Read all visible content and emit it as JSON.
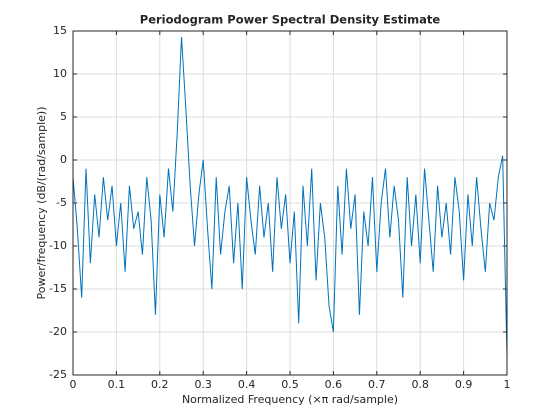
{
  "chart_data": {
    "type": "line",
    "title": "Periodogram Power Spectral Density Estimate",
    "xlabel": "Normalized Frequency  (×π rad/sample)",
    "ylabel": "Power/frequency (dB/(rad/sample))",
    "x": [
      0,
      0.01,
      0.02,
      0.03,
      0.04,
      0.05,
      0.06,
      0.07,
      0.08,
      0.09,
      0.1,
      0.11,
      0.12,
      0.13,
      0.14,
      0.15,
      0.16,
      0.17,
      0.18,
      0.19,
      0.2,
      0.21,
      0.22,
      0.23,
      0.24,
      0.25,
      0.26,
      0.27,
      0.28,
      0.29,
      0.3,
      0.31,
      0.32,
      0.33,
      0.34,
      0.35,
      0.36,
      0.37,
      0.38,
      0.39,
      0.4,
      0.41,
      0.42,
      0.43,
      0.44,
      0.45,
      0.46,
      0.47,
      0.48,
      0.49,
      0.5,
      0.51,
      0.52,
      0.53,
      0.54,
      0.55,
      0.56,
      0.57,
      0.58,
      0.59,
      0.6,
      0.61,
      0.62,
      0.63,
      0.64,
      0.65,
      0.66,
      0.67,
      0.68,
      0.69,
      0.7,
      0.71,
      0.72,
      0.73,
      0.74,
      0.75,
      0.76,
      0.77,
      0.78,
      0.79,
      0.8,
      0.81,
      0.82,
      0.83,
      0.84,
      0.85,
      0.86,
      0.87,
      0.88,
      0.89,
      0.9,
      0.91,
      0.92,
      0.93,
      0.94,
      0.95,
      0.96,
      0.97,
      0.98,
      0.99,
      1
    ],
    "series": [
      {
        "color": "#0072bd",
        "values": [
          -2,
          -8,
          -16,
          -1,
          -12,
          -4,
          -9,
          -2,
          -7,
          -3,
          -10,
          -5,
          -13,
          -3,
          -8,
          -6,
          -11,
          -2,
          -7,
          -18,
          -4,
          -9,
          -1,
          -6,
          3,
          14.3,
          6,
          -3,
          -10,
          -4,
          0,
          -8,
          -15,
          -2,
          -11,
          -6,
          -3,
          -12,
          -5,
          -15,
          -2,
          -7,
          -11,
          -3,
          -9,
          -5,
          -13,
          -2,
          -8,
          -4,
          -12,
          -6,
          -19,
          -3,
          -10,
          -1,
          -14,
          -5,
          -9,
          -17,
          -20,
          -3,
          -11,
          -1,
          -8,
          -4,
          -18,
          -6,
          -10,
          -2,
          -13,
          -5,
          -1,
          -9,
          -3,
          -7,
          -16,
          -2,
          -10,
          -4,
          -12,
          -1,
          -7,
          -13,
          -3,
          -9,
          -5,
          -11,
          -2,
          -6,
          -14,
          -4,
          -10,
          -2,
          -8,
          -13,
          -5,
          -7,
          -2,
          0.5,
          -23
        ]
      }
    ],
    "xlim": [
      0,
      1
    ],
    "xticks": [
      0,
      0.1,
      0.2,
      0.3,
      0.4,
      0.5,
      0.6,
      0.7,
      0.8,
      0.9,
      1
    ],
    "ylim": [
      -25,
      15
    ],
    "yticks": [
      -25,
      -20,
      -15,
      -10,
      -5,
      0,
      5,
      10,
      15
    ],
    "grid": true
  }
}
